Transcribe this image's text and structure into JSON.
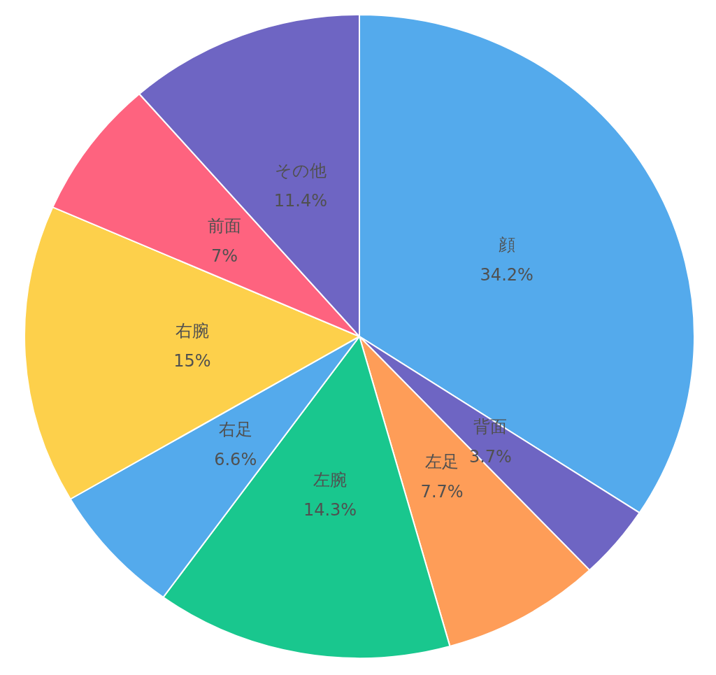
{
  "chart_data": {
    "type": "pie",
    "categories": [
      "顔",
      "背面",
      "左足",
      "左腕",
      "右足",
      "右腕",
      "前面",
      "その他"
    ],
    "values": [
      34.2,
      3.7,
      7.7,
      14.3,
      6.6,
      15,
      7,
      11.4
    ],
    "value_labels": [
      "34.2%",
      "3.7%",
      "7.7%",
      "14.3%",
      "6.6%",
      "15%",
      "7%",
      "11.4%"
    ],
    "colors": [
      "#54aaec",
      "#6e65c3",
      "#fe9d58",
      "#19c78e",
      "#54aaec",
      "#fdd04b",
      "#fe637f",
      "#6e65c3"
    ]
  }
}
